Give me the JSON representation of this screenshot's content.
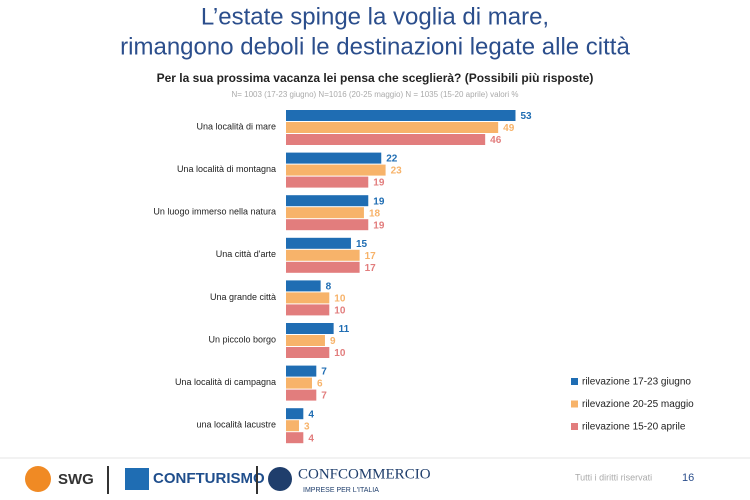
{
  "chart_data": {
    "type": "bar",
    "orientation": "horizontal",
    "title": [
      "L’estate spinge la voglia di mare,",
      "rimangono deboli le destinazioni legate alle città"
    ],
    "subtitle": "Per la sua prossima vacanza lei pensa che sceglierà? (Possibili più risposte)",
    "note": "N= 1003 (17-23 giugno) N=1016 (20-25 maggio) N = 1035 (15-20 aprile) valori %",
    "categories": [
      "Una località di mare",
      "Una località di montagna",
      "Un luogo immerso nella natura",
      "Una città d'arte",
      "Una grande città",
      "Un piccolo borgo",
      "Una località di campagna",
      "una località lacustre"
    ],
    "series": [
      {
        "name": "rilevazione 17-23 giugno",
        "color": "#1f6db3",
        "values": [
          53,
          22,
          19,
          15,
          8,
          11,
          7,
          4
        ]
      },
      {
        "name": "rilevazione 20-25 maggio",
        "color": "#f7b36a",
        "values": [
          49,
          23,
          18,
          17,
          10,
          9,
          6,
          3
        ]
      },
      {
        "name": "rilevazione 15-20 aprile",
        "color": "#e27d7d",
        "values": [
          46,
          19,
          19,
          17,
          10,
          10,
          7,
          4
        ]
      }
    ],
    "legend": "lower right"
  },
  "footer": {
    "logos": [
      "SWG",
      "CONFTURISMO",
      "CONFCOMMERCIO",
      "IMPRESE PER L'ITALIA"
    ],
    "rights": "Tutti i diritti riservati",
    "page": "16"
  }
}
